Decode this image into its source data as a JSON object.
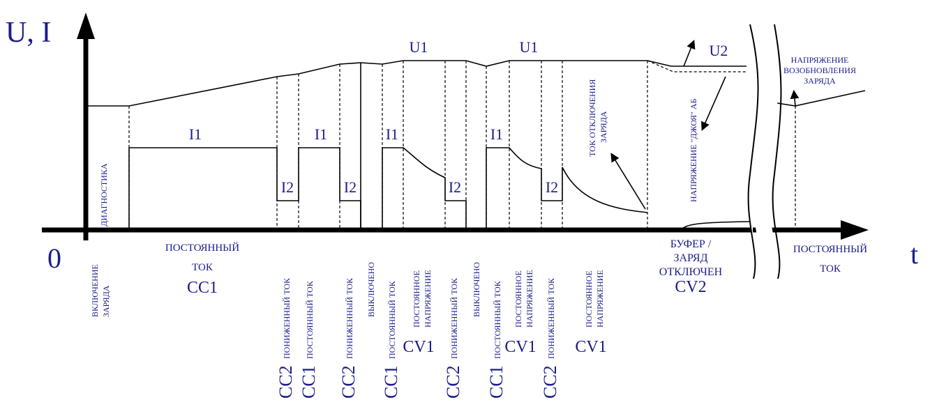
{
  "axis": {
    "y_label": "U, I",
    "origin": "0",
    "x_label": "t"
  },
  "curve_labels": {
    "voltage": [
      "U1",
      "U1",
      "U2"
    ],
    "current": [
      "I1",
      "I1",
      "I1",
      "I1"
    ],
    "reduced_current": [
      "I2",
      "I2",
      "I2",
      "I2"
    ]
  },
  "notes": {
    "diagnostics": "ДИАГНОСТИКА",
    "cutoff_current": [
      "ТОК ОТКЛЮЧЕНИЯ",
      "ЗАРЯДА"
    ],
    "battery_voltage": "НАПРЯЖЕНИЕ \"ДЖОЯ\" АБ",
    "resume_voltage": [
      "НАПРЯЖЕНИЕ",
      "ВОЗОБНОВЛЕНИЯ",
      "ЗАРЯДА"
    ]
  },
  "stages_vertical": [
    {
      "lines": [
        "ВКЛЮЧЕНИЕ",
        "ЗАРЯДА"
      ]
    },
    {
      "code": "CC2",
      "lines": [
        "ПОНИЖЕННЫЙ ТОК"
      ]
    },
    {
      "code": "CC1",
      "lines": [
        "ПОСТОЯННЫЙ ТОК"
      ]
    },
    {
      "code": "CC2",
      "lines": [
        "ПОНИЖЕННЫЙ ТОК"
      ]
    },
    {
      "lines": [
        "ВЫКЛЮЧЕНО"
      ]
    },
    {
      "code": "CC1",
      "lines": [
        "ПОСТОЯННЫЙ ТОК"
      ]
    },
    {
      "code": "CV1",
      "lines": [
        "ПОСТОЯННОЕ",
        "НАПРЯЖЕНИЕ"
      ]
    },
    {
      "code": "CC2",
      "lines": [
        "ПОНИЖЕННЫЙ ТОК"
      ]
    },
    {
      "lines": [
        "ВЫКЛЮЧЕНО"
      ]
    },
    {
      "code": "CC1",
      "lines": [
        "ПОСТОЯННЫЙ ТОК"
      ]
    },
    {
      "code": "CV1",
      "lines": [
        "ПОСТОЯННОЕ",
        "НАПРЯЖЕНИЕ"
      ]
    },
    {
      "code": "CC2",
      "lines": [
        "ПОНИЖЕННЫЙ ТОК"
      ]
    },
    {
      "code": "CV1",
      "lines": [
        "ПОСТОЯННОЕ",
        "НАПРЯЖЕНИЕ"
      ]
    }
  ],
  "stages_horizontal": [
    {
      "lines": [
        "ПОСТОЯННЫЙ",
        "ТОК"
      ],
      "code": "CC1"
    },
    {
      "lines": [
        "БУФЕР /",
        "ЗАРЯД",
        "ОТКЛЮЧЕН"
      ],
      "code": "CV2"
    },
    {
      "lines": [
        "ПОСТОЯННЫЙ",
        "ТОК"
      ]
    }
  ]
}
